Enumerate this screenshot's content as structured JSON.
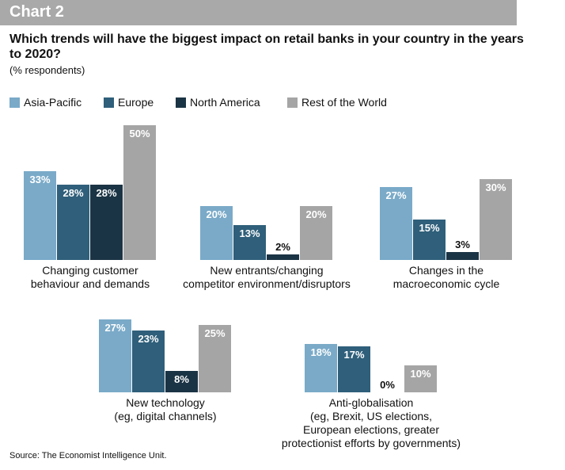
{
  "chart_data": {
    "type": "bar",
    "title": "Chart 2",
    "subtitle": "Which trends will have the biggest impact on retail banks in your country in the years to 2020?",
    "unit_note": "(% respondents)",
    "categories": [
      "Changing customer\nbehaviour and demands",
      "New entrants/changing\ncompetitor environment/disruptors",
      "Changes in the\nmacroeconomic cycle",
      "New technology\n(eg, digital channels)",
      "Anti-globalisation\n(eg, Brexit, US elections,\nEuropean elections, greater\nprotectionist efforts by governments)"
    ],
    "series": [
      {
        "name": "Asia-Pacific",
        "color": "#7aaac8",
        "values": [
          33,
          20,
          27,
          27,
          18
        ],
        "value_labels": [
          "33%",
          "20%",
          "27%",
          "27%",
          "18%"
        ]
      },
      {
        "name": "Europe",
        "color": "#2f5f7a",
        "values": [
          28,
          13,
          15,
          23,
          17
        ],
        "value_labels": [
          "28%",
          "13%",
          "15%",
          "23%",
          "17%"
        ]
      },
      {
        "name": "North America",
        "color": "#1b3445",
        "values": [
          28,
          2,
          3,
          8,
          0
        ],
        "value_labels": [
          "28%",
          "2%",
          "3%",
          "8%",
          "0%"
        ]
      },
      {
        "name": "Rest of the World",
        "color": "#a5a5a5",
        "values": [
          50,
          20,
          30,
          25,
          10
        ],
        "value_labels": [
          "50%",
          "20%",
          "30%",
          "25%",
          "10%"
        ]
      }
    ],
    "legend": "top-left",
    "source": "Source: The Economist Intelligence Unit."
  }
}
